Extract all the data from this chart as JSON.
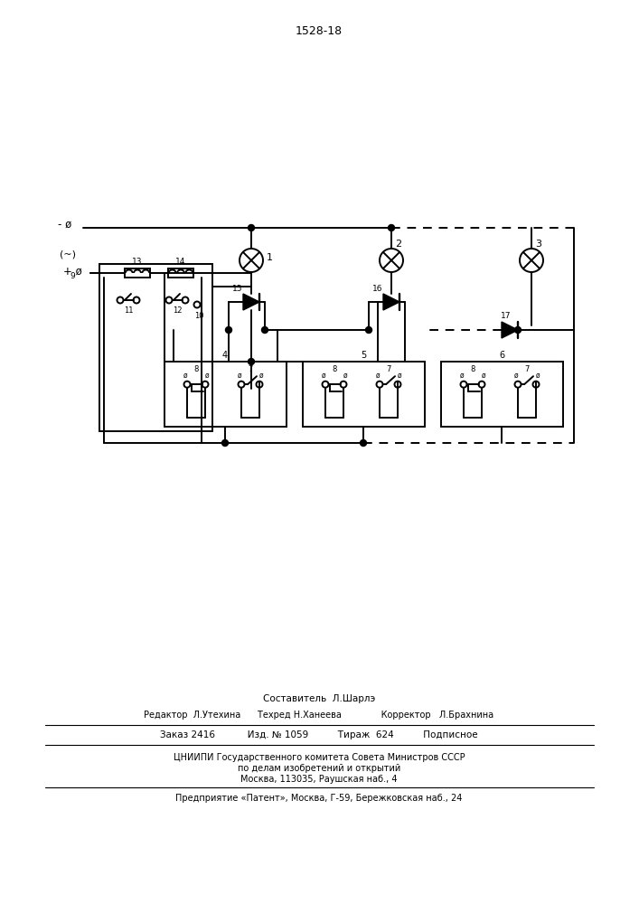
{
  "page_number": "1528-18",
  "bg_color": "#ffffff",
  "line_color": "#000000",
  "fig_width": 7.07,
  "fig_height": 10.0,
  "footer_lines": [
    "Составитель  Л.Шарлэ",
    "Редактор  Л.Утехина      Техред Н.Ханеева              Корректор   Л.Брахнина",
    "Заказ 2416           Изд. № 1059          Тираж  624          Подписное",
    "ЦНИИПИ Государственного комитета Совета Министров СССР",
    "по делам изобретений и открытий",
    "Москва, 113035, Раушская наб., 4",
    "Предприятие «Патент», Москва, Г-59, Бережковская наб., 24"
  ]
}
